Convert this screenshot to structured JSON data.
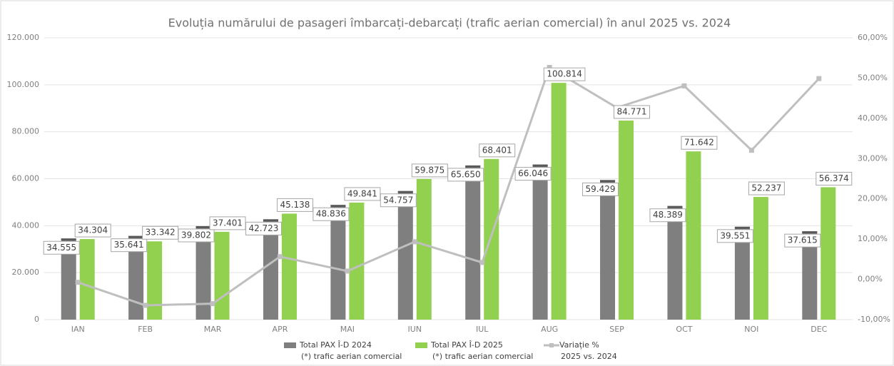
{
  "chart_data": {
    "type": "bar_line",
    "title": "Evoluția numărului de pasageri îmbarcați-debarcați (trafic aerian comercial) în anul 2025 vs. 2024",
    "categories": [
      "IAN",
      "FEB",
      "MAR",
      "APR",
      "MAI",
      "IUN",
      "IUL",
      "AUG",
      "SEP",
      "OCT",
      "NOI",
      "DEC"
    ],
    "series": [
      {
        "name": "Total PAX Î-D 2024",
        "note": "(*) trafic aerian comercial",
        "type": "bar",
        "color": "#7f7f7f",
        "values": [
          34555,
          35641,
          39802,
          42723,
          48836,
          54757,
          65650,
          66046,
          59429,
          48389,
          39551,
          37615
        ],
        "value_labels": [
          "34.555",
          "35.641",
          "39.802",
          "42.723",
          "48.836",
          "54.757",
          "65.650",
          "66.046",
          "59.429",
          "48.389",
          "39.551",
          "37.615"
        ]
      },
      {
        "name": "Total PAX Î-D 2025",
        "note": "(*) trafic aerian comercial",
        "type": "bar",
        "color": "#92d050",
        "values": [
          34304,
          33342,
          37401,
          45138,
          49841,
          59875,
          68401,
          100814,
          84771,
          71642,
          52237,
          56374
        ],
        "value_labels": [
          "34.304",
          "33.342",
          "37.401",
          "45.138",
          "49.841",
          "59.875",
          "68.401",
          "100.814",
          "84.771",
          "71.642",
          "52.237",
          "56.374"
        ]
      },
      {
        "name": "Variație %",
        "note": "2025 vs. 2024",
        "type": "line",
        "axis": "y2",
        "color": "#bfbfbf",
        "values": [
          -0.73,
          -6.45,
          -6.03,
          5.65,
          2.06,
          9.35,
          4.19,
          52.64,
          42.64,
          48.06,
          32.07,
          49.87
        ]
      }
    ],
    "ylim": [
      0,
      120000
    ],
    "yticks": [
      0,
      {
        "value": 20000,
        "label": "20.000"
      },
      {
        "value": 40000,
        "label": "40.000"
      },
      {
        "value": 60000,
        "label": "60.000"
      },
      {
        "value": 80000,
        "label": "80.000"
      },
      {
        "value": 100000,
        "label": "100.000"
      },
      {
        "value": 120000,
        "label": "120.000"
      }
    ],
    "y2lim": [
      -10,
      60
    ],
    "y2ticks": [
      {
        "value": -10,
        "label": "-10,00%"
      },
      {
        "value": 0,
        "label": "0,00%"
      },
      {
        "value": 10,
        "label": "10,00%"
      },
      {
        "value": 20,
        "label": "20,00%"
      },
      {
        "value": 30,
        "label": "30,00%"
      },
      {
        "value": 40,
        "label": "40,00%"
      },
      {
        "value": 50,
        "label": "50,00%"
      },
      {
        "value": 60,
        "label": "60,00%"
      }
    ],
    "grid": true,
    "legend": "bottom"
  }
}
